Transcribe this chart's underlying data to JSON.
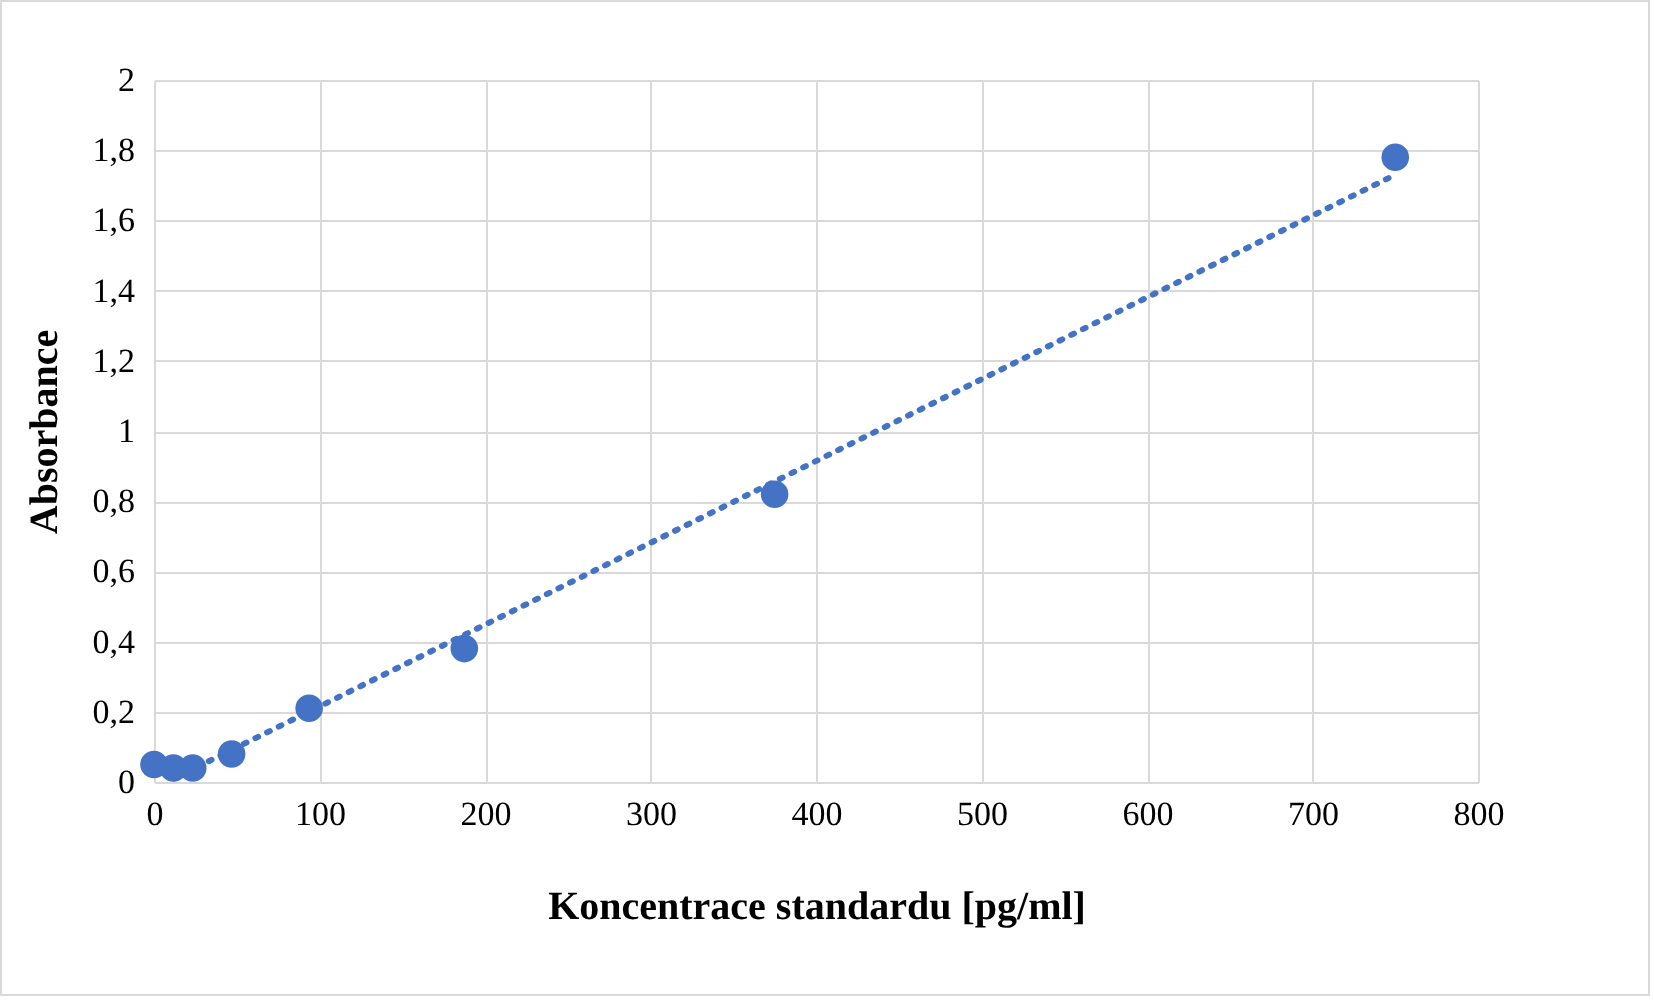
{
  "chart_data": {
    "type": "scatter",
    "xlabel": "Koncentrace standardu [pg/ml]",
    "ylabel": "Absorbance",
    "x": [
      0,
      11.7,
      23.4,
      46.9,
      93.75,
      187.5,
      375,
      750
    ],
    "series": [
      {
        "color": "#4472c4",
        "marker": "circle",
        "values": [
          0.05,
          0.04,
          0.04,
          0.08,
          0.21,
          0.38,
          0.82,
          1.78
        ]
      },
      {
        "type": "line",
        "color": "#4472c4",
        "line_style": "dotted",
        "marker": "none",
        "x": [
          12,
          750
        ],
        "values": [
          0.01,
          1.73
        ]
      }
    ],
    "xlim": [
      0,
      800
    ],
    "xticks": [
      0,
      100,
      200,
      300,
      400,
      500,
      600,
      700,
      800
    ],
    "ylim": [
      0,
      2
    ],
    "yticks": [
      {
        "value": 0,
        "label": "0"
      },
      {
        "value": 0.2,
        "label": "0,2"
      },
      {
        "value": 0.4,
        "label": "0,4"
      },
      {
        "value": 0.6,
        "label": "0,6"
      },
      {
        "value": 0.8,
        "label": "0,8"
      },
      {
        "value": 1,
        "label": "1"
      },
      {
        "value": 1.2,
        "label": "1,2"
      },
      {
        "value": 1.4,
        "label": "1,4"
      },
      {
        "value": 1.6,
        "label": "1,6"
      },
      {
        "value": 1.8,
        "label": "1,8"
      },
      {
        "value": 2,
        "label": "2"
      }
    ],
    "grid": true
  }
}
